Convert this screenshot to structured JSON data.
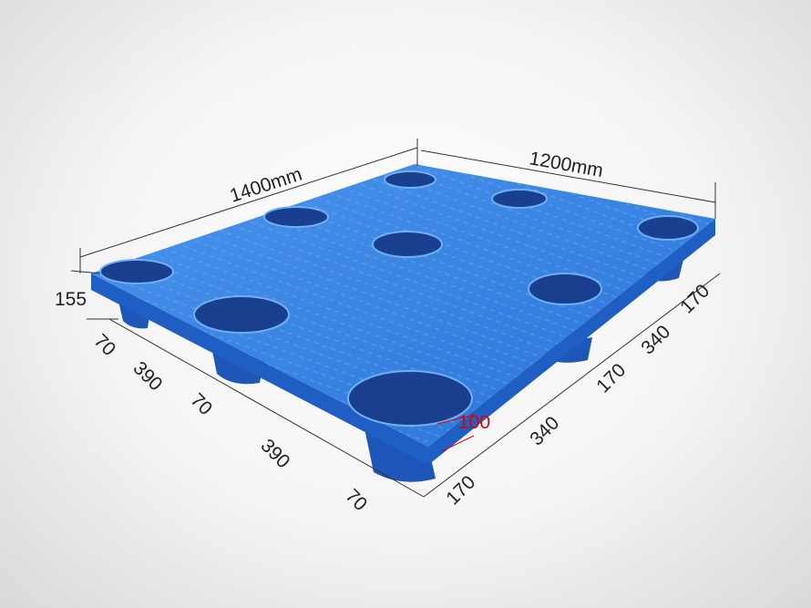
{
  "product": {
    "colors": {
      "pallet": "#2f7fe0",
      "pallet_dark": "#1c4fa8",
      "hole": "#1a3f8f",
      "dimension_line": "#333333",
      "highlight": "#e00000"
    }
  },
  "dimensions": {
    "length": "1400mm",
    "width": "1200mm",
    "height": "155",
    "foot_height": "100",
    "left_side": [
      "70",
      "390",
      "70",
      "390",
      "70"
    ],
    "right_side": [
      "170",
      "340",
      "170",
      "340",
      "170"
    ]
  }
}
